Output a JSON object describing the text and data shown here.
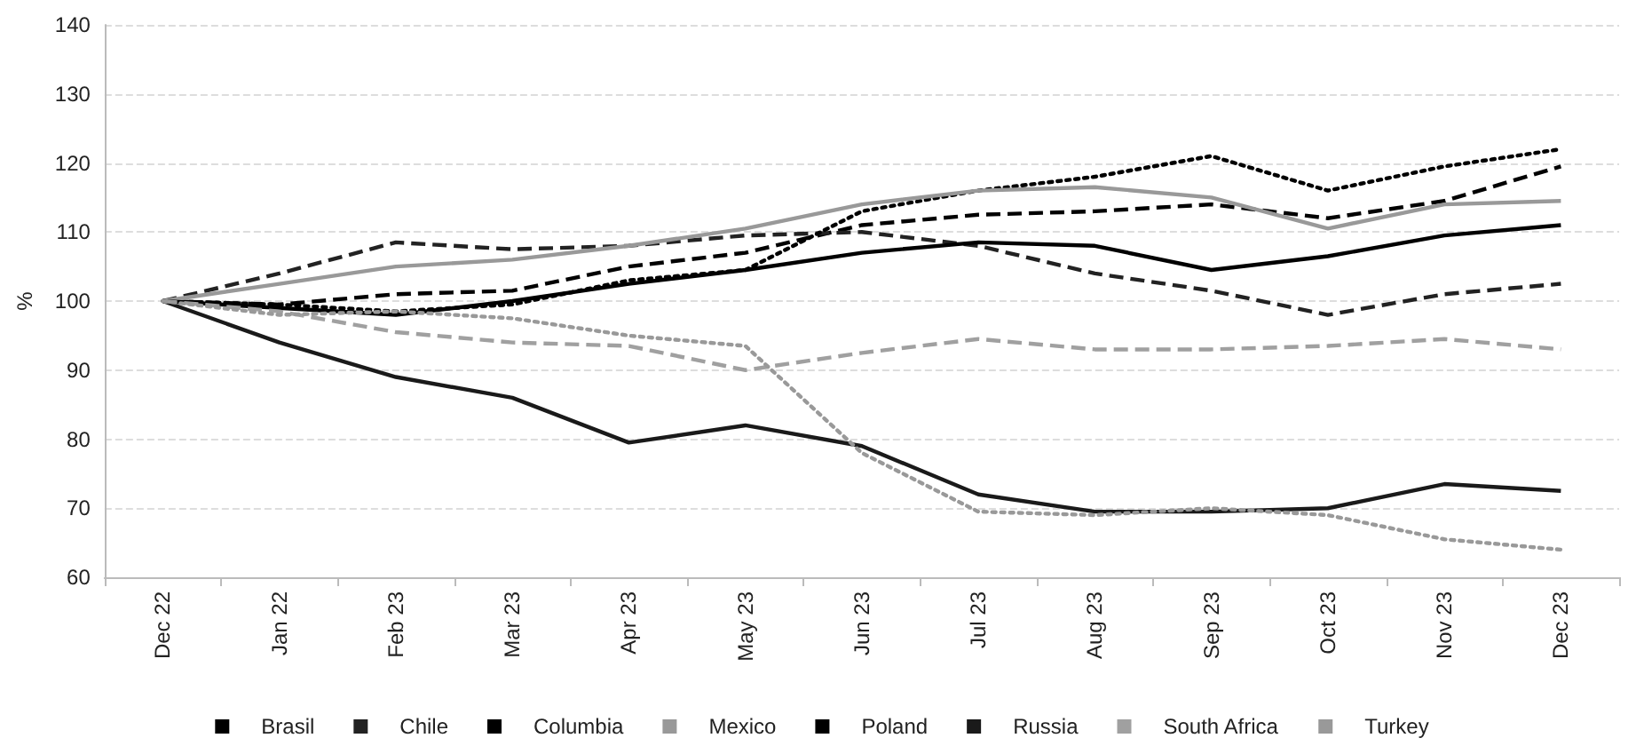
{
  "chart_data": {
    "type": "line",
    "ylabel": "%",
    "categories": [
      "Dec 22",
      "Jan 22",
      "Feb 23",
      "Mar 23",
      "Apr 23",
      "May 23",
      "Jun 23",
      "Jul 23",
      "Aug 23",
      "Sep 23",
      "Oct 23",
      "Nov 23",
      "Dec 23"
    ],
    "series": [
      {
        "name": "Brasil",
        "color": "#000000",
        "line_style": "dashed",
        "values": [
          100,
          99.5,
          101,
          101.5,
          105,
          107,
          111,
          112.5,
          113,
          114,
          112,
          114.5,
          119.5
        ]
      },
      {
        "name": "Chile",
        "color": "#222222",
        "line_style": "dashed",
        "values": [
          100,
          104,
          108.5,
          107.5,
          108,
          109.5,
          110,
          108,
          104,
          101.5,
          98,
          101,
          102.5
        ]
      },
      {
        "name": "Columbia",
        "color": "#000000",
        "line_style": "dotted",
        "values": [
          100,
          99.5,
          98.5,
          99.5,
          103,
          104.5,
          113,
          116,
          118,
          121,
          116,
          119.5,
          122
        ]
      },
      {
        "name": "Mexico",
        "color": "#999999",
        "line_style": "solid",
        "values": [
          100,
          102.5,
          105,
          106,
          108,
          110.5,
          114,
          116,
          116.5,
          115,
          110.5,
          114,
          114.5
        ]
      },
      {
        "name": "Poland",
        "color": "#000000",
        "line_style": "solid",
        "values": [
          100,
          99,
          98,
          100,
          102.5,
          104.5,
          107,
          108.5,
          108,
          104.5,
          106.5,
          109.5,
          111
        ]
      },
      {
        "name": "Russia",
        "color": "#1a1a1a",
        "line_style": "solid",
        "values": [
          100,
          94,
          89,
          86,
          79.5,
          82,
          79,
          72,
          69.5,
          69.5,
          70,
          73.5,
          72.5
        ]
      },
      {
        "name": "South Africa",
        "color": "#a0a0a0",
        "line_style": "dashed",
        "values": [
          100,
          98.5,
          95.5,
          94,
          93.5,
          90,
          92.5,
          94.5,
          93,
          93,
          93.5,
          94.5,
          93
        ]
      },
      {
        "name": "Turkey",
        "color": "#999999",
        "line_style": "dotted",
        "values": [
          100,
          98,
          98.5,
          97.5,
          95,
          93.5,
          78,
          69.5,
          69,
          70,
          69,
          65.5,
          64
        ]
      }
    ],
    "ylim": [
      60,
      140
    ],
    "yticks": [
      60,
      70,
      80,
      90,
      100,
      110,
      120,
      130,
      140
    ],
    "grid": "y",
    "legend": "bottom",
    "marker": "none"
  }
}
